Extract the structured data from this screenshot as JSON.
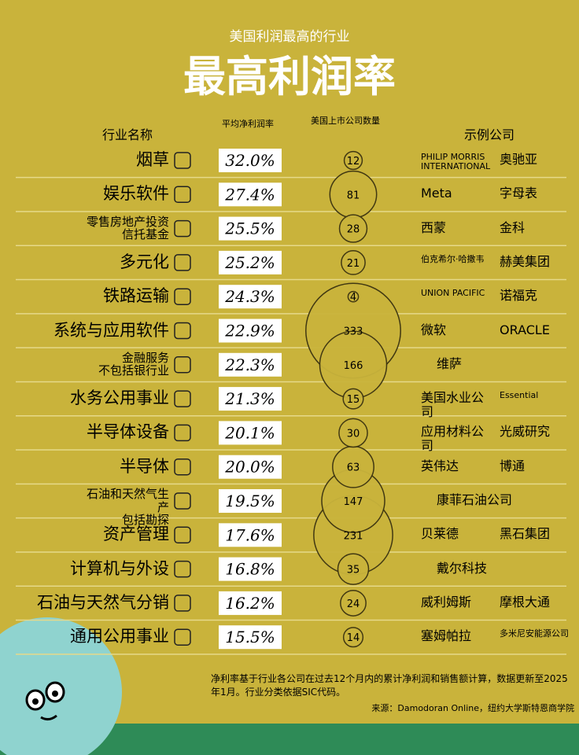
{
  "chart_data": {
    "type": "bubble",
    "subtitle": "美国利润最高的行业",
    "title": "最高利润率",
    "headers": {
      "industry": "行业名称",
      "margin": "平均净利润率",
      "count": "美国上市公司数量",
      "examples": "示例公司"
    },
    "categories": [
      "烟草",
      "娱乐软件",
      "零售房地产投资信托基金",
      "多元化",
      "铁路运输",
      "系统与应用软件",
      "金融服务\n不包括银行业",
      "水务公用事业",
      "半导体设备",
      "半导体",
      "石油和天然气生产\n包括勘探",
      "资产管理",
      "计算机与外设",
      "石油与天然气分销",
      "通用公用事业"
    ],
    "series": [
      {
        "name": "平均净利润率",
        "color": "#ffffff",
        "values": [
          32.0,
          27.4,
          25.5,
          25.2,
          24.3,
          22.9,
          22.3,
          21.3,
          20.1,
          20.0,
          19.5,
          17.6,
          16.8,
          16.2,
          15.5
        ],
        "value_labels": [
          "32.0%",
          "27.4%",
          "25.5%",
          "25.2%",
          "24.3%",
          "22.9%",
          "22.3%",
          "21.3%",
          "20.1%",
          "20.0%",
          "19.5%",
          "17.6%",
          "16.8%",
          "16.2%",
          "15.5%"
        ]
      },
      {
        "name": "美国上市公司数量",
        "color": "#c9b43c",
        "values": [
          12,
          81,
          28,
          21,
          4,
          333,
          166,
          15,
          30,
          63,
          147,
          231,
          35,
          24,
          14
        ]
      }
    ],
    "examples": [
      [
        "PHILIP MORRIS INTERNATIONAL",
        "奥驰亚"
      ],
      [
        "Meta",
        "字母表"
      ],
      [
        "西蒙",
        "金科"
      ],
      [
        "伯克希尔·哈撒韦",
        "赫美集团"
      ],
      [
        "UNION PACIFIC",
        "诺福克"
      ],
      [
        "微软",
        "ORACLE"
      ],
      [
        "维萨"
      ],
      [
        "美国水业公司",
        "Essential"
      ],
      [
        "应用材料公司",
        "光威研究"
      ],
      [
        "英伟达",
        "博通"
      ],
      [
        "康菲石油公司"
      ],
      [
        "贝莱德",
        "黑石集团"
      ],
      [
        "戴尔科技"
      ],
      [
        "威利姆斯",
        "摩根大通"
      ],
      [
        "塞姆帕拉",
        "多米尼安能源公司"
      ]
    ],
    "note": "净利率基于行业各公司在过去12个月内的累计净利润和销售额计算，数据更新至2025年1月。行业分类依据SIC代码。",
    "source": "来源：Damodoran Online，纽约大学斯特恩商学院"
  }
}
